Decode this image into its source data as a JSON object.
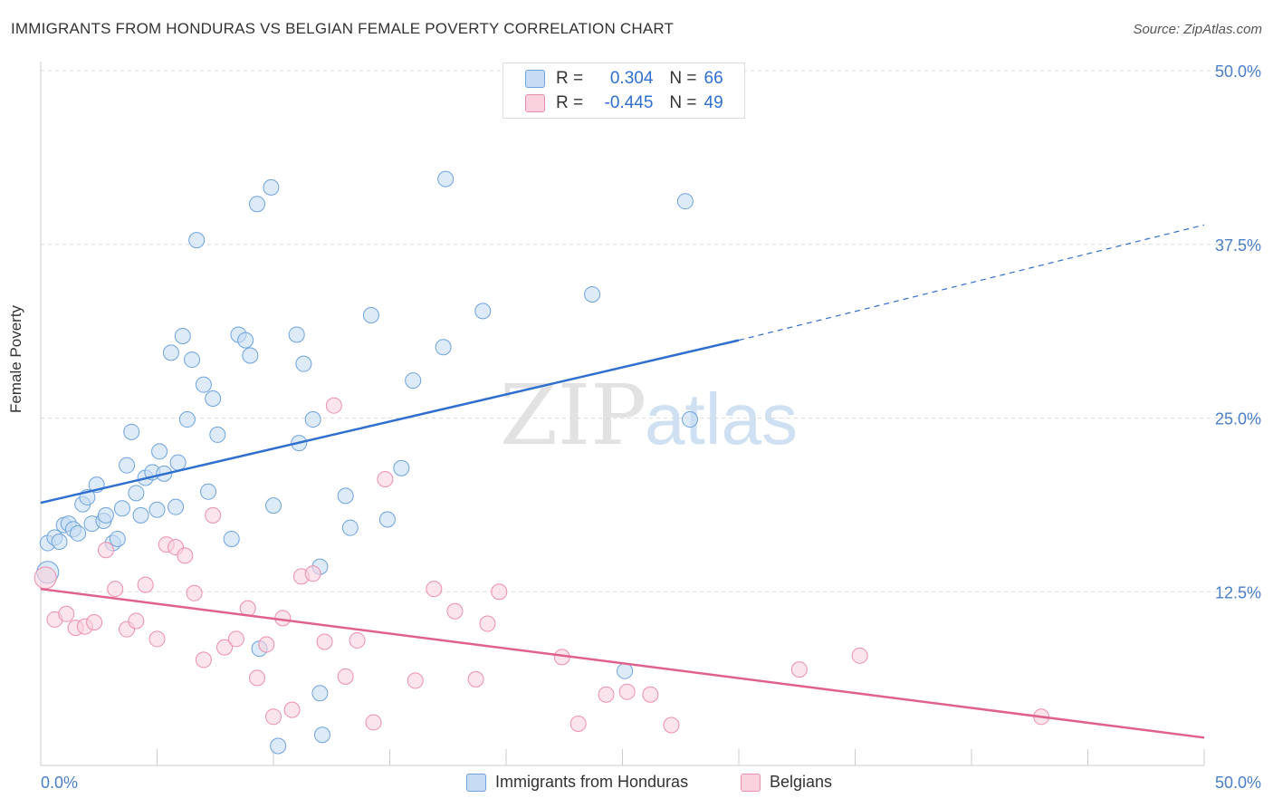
{
  "header": {
    "title": "IMMIGRANTS FROM HONDURAS VS BELGIAN FEMALE POVERTY CORRELATION CHART",
    "source": "Source: ZipAtlas.com"
  },
  "watermark": {
    "zip": "ZIP",
    "atlas": "atlas"
  },
  "legend_top": [
    {
      "r_label": "R =",
      "r_value": "0.304",
      "n_label": "N =",
      "n_value": "66",
      "color": "#a9c9ef"
    },
    {
      "r_label": "R =",
      "r_value": "-0.445",
      "n_label": "N =",
      "n_value": "49",
      "color": "#f5b8cb"
    }
  ],
  "legend_bottom": [
    {
      "label": "Immigrants from Honduras",
      "color": "#a9c9ef"
    },
    {
      "label": "Belgians",
      "color": "#f5b8cb"
    }
  ],
  "chart_data": {
    "type": "scatter",
    "title": "IMMIGRANTS FROM HONDURAS VS BELGIAN FEMALE POVERTY CORRELATION CHART",
    "xlabel": "",
    "ylabel": "Female Poverty",
    "xlim": [
      0,
      50
    ],
    "ylim": [
      0,
      50
    ],
    "x_tick_labels": [
      "0.0%",
      "50.0%"
    ],
    "y_ticks": [
      12.5,
      25.0,
      37.5,
      50.0
    ],
    "y_tick_labels": [
      "12.5%",
      "25.0%",
      "37.5%",
      "50.0%"
    ],
    "grid": "horizontal dashed",
    "legend": "top-center",
    "series": [
      {
        "name": "Immigrants from Honduras",
        "color": "#6fa3de",
        "fill": "#c6dcf4",
        "r": 0.304,
        "n": 66,
        "trend": {
          "x": [
            0,
            30
          ],
          "y": [
            18.9,
            30.6
          ],
          "dashed_to": [
            50,
            38.9
          ]
        },
        "points": [
          [
            0.3,
            13.9
          ],
          [
            0.3,
            16.0
          ],
          [
            0.6,
            16.4
          ],
          [
            0.8,
            16.1
          ],
          [
            1.0,
            17.3
          ],
          [
            1.2,
            17.4
          ],
          [
            1.4,
            17.0
          ],
          [
            1.6,
            16.7
          ],
          [
            1.8,
            18.8
          ],
          [
            2.0,
            19.3
          ],
          [
            2.2,
            17.4
          ],
          [
            2.4,
            20.2
          ],
          [
            2.7,
            17.6
          ],
          [
            2.8,
            18.0
          ],
          [
            3.1,
            16.0
          ],
          [
            3.3,
            16.3
          ],
          [
            3.5,
            18.5
          ],
          [
            3.7,
            21.6
          ],
          [
            3.9,
            24.0
          ],
          [
            4.1,
            19.6
          ],
          [
            4.3,
            18.0
          ],
          [
            4.5,
            20.7
          ],
          [
            4.8,
            21.1
          ],
          [
            5.0,
            18.4
          ],
          [
            5.1,
            22.6
          ],
          [
            5.3,
            21.0
          ],
          [
            5.6,
            29.7
          ],
          [
            5.8,
            18.6
          ],
          [
            5.9,
            21.8
          ],
          [
            6.1,
            30.9
          ],
          [
            6.3,
            24.9
          ],
          [
            6.5,
            29.2
          ],
          [
            6.7,
            37.8
          ],
          [
            7.0,
            27.4
          ],
          [
            7.2,
            19.7
          ],
          [
            7.4,
            26.4
          ],
          [
            7.6,
            23.8
          ],
          [
            8.2,
            16.3
          ],
          [
            8.5,
            31.0
          ],
          [
            8.8,
            30.6
          ],
          [
            9.0,
            29.5
          ],
          [
            9.3,
            40.4
          ],
          [
            9.4,
            8.4
          ],
          [
            9.9,
            41.6
          ],
          [
            10.0,
            18.7
          ],
          [
            10.2,
            1.4
          ],
          [
            11.0,
            31.0
          ],
          [
            11.1,
            23.2
          ],
          [
            11.3,
            28.9
          ],
          [
            11.7,
            24.9
          ],
          [
            12.0,
            14.3
          ],
          [
            12.1,
            2.2
          ],
          [
            13.1,
            19.4
          ],
          [
            13.3,
            17.1
          ],
          [
            14.2,
            32.4
          ],
          [
            14.9,
            17.7
          ],
          [
            15.5,
            21.4
          ],
          [
            16.0,
            27.7
          ],
          [
            17.3,
            30.1
          ],
          [
            17.4,
            42.2
          ],
          [
            19.0,
            32.7
          ],
          [
            23.7,
            33.9
          ],
          [
            25.1,
            6.8
          ],
          [
            27.7,
            40.6
          ],
          [
            27.9,
            24.9
          ],
          [
            12.0,
            5.2
          ]
        ]
      },
      {
        "name": "Belgians",
        "color": "#ec8fae",
        "fill": "#f9d2de",
        "r": -0.445,
        "n": 49,
        "trend": {
          "x": [
            0,
            50
          ],
          "y": [
            12.7,
            2.0
          ]
        },
        "points": [
          [
            0.2,
            13.5
          ],
          [
            0.6,
            10.5
          ],
          [
            1.1,
            10.9
          ],
          [
            1.5,
            9.9
          ],
          [
            1.9,
            10.0
          ],
          [
            2.3,
            10.3
          ],
          [
            2.8,
            15.5
          ],
          [
            3.2,
            12.7
          ],
          [
            3.7,
            9.8
          ],
          [
            4.1,
            10.4
          ],
          [
            4.5,
            13.0
          ],
          [
            5.0,
            9.1
          ],
          [
            5.4,
            15.9
          ],
          [
            5.8,
            15.7
          ],
          [
            6.2,
            15.1
          ],
          [
            6.6,
            12.4
          ],
          [
            7.0,
            7.6
          ],
          [
            7.4,
            18.0
          ],
          [
            7.9,
            8.5
          ],
          [
            8.4,
            9.1
          ],
          [
            8.9,
            11.3
          ],
          [
            9.3,
            6.3
          ],
          [
            9.7,
            8.7
          ],
          [
            10.0,
            3.5
          ],
          [
            10.4,
            10.6
          ],
          [
            10.8,
            4.0
          ],
          [
            11.2,
            13.6
          ],
          [
            11.7,
            13.8
          ],
          [
            12.2,
            8.9
          ],
          [
            12.6,
            25.9
          ],
          [
            13.1,
            6.4
          ],
          [
            13.6,
            9.0
          ],
          [
            14.3,
            3.1
          ],
          [
            14.8,
            20.6
          ],
          [
            16.1,
            6.1
          ],
          [
            16.9,
            12.7
          ],
          [
            17.8,
            11.1
          ],
          [
            18.7,
            6.2
          ],
          [
            19.2,
            10.2
          ],
          [
            19.7,
            12.5
          ],
          [
            22.4,
            7.8
          ],
          [
            23.1,
            3.0
          ],
          [
            24.3,
            5.1
          ],
          [
            25.2,
            5.3
          ],
          [
            26.2,
            5.1
          ],
          [
            27.1,
            2.9
          ],
          [
            32.6,
            6.9
          ],
          [
            35.2,
            7.9
          ],
          [
            43.0,
            3.5
          ]
        ]
      }
    ]
  }
}
